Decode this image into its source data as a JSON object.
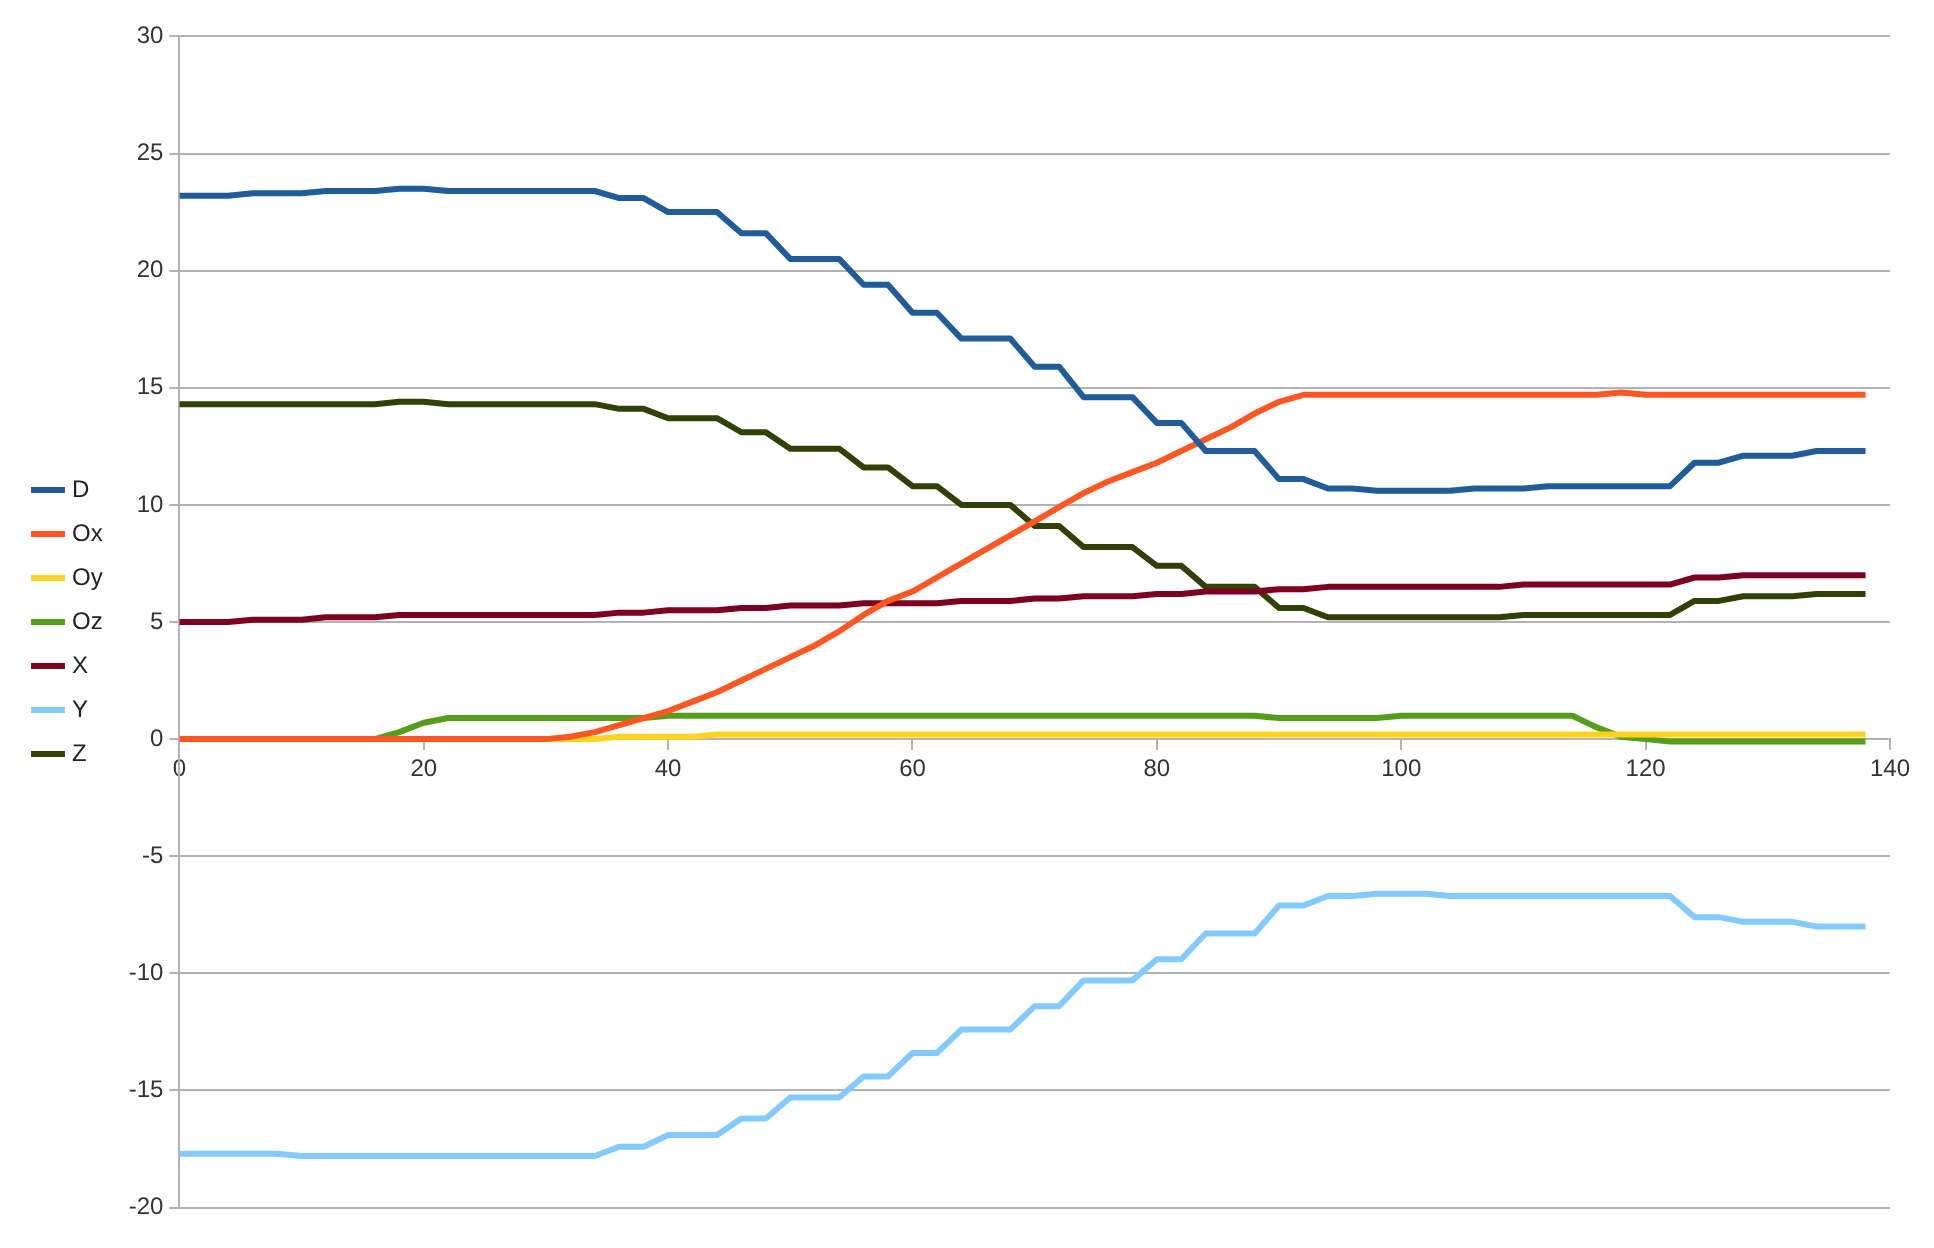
{
  "chart_data": {
    "type": "line",
    "xlim": [
      0,
      140
    ],
    "xticks": [
      0,
      20,
      40,
      60,
      80,
      100,
      120,
      140
    ],
    "ylim": [
      -20,
      30
    ],
    "yticks": [
      -20,
      -15,
      -10,
      -5,
      0,
      5,
      10,
      15,
      20,
      25,
      30
    ],
    "grid": "y",
    "legend": "left",
    "marker": "none",
    "x": [
      0,
      2,
      4,
      6,
      8,
      10,
      12,
      14,
      16,
      18,
      20,
      22,
      24,
      26,
      28,
      30,
      32,
      34,
      36,
      38,
      40,
      42,
      44,
      46,
      48,
      50,
      52,
      54,
      56,
      58,
      60,
      62,
      64,
      66,
      68,
      70,
      72,
      74,
      76,
      78,
      80,
      82,
      84,
      86,
      88,
      90,
      92,
      94,
      96,
      98,
      100,
      102,
      104,
      106,
      108,
      110,
      112,
      114,
      116,
      118,
      120,
      122,
      124,
      126,
      128,
      130,
      132,
      134,
      136,
      138
    ],
    "series": [
      {
        "name": "D",
        "color": "#1f5c99",
        "values": [
          23.2,
          23.2,
          23.2,
          23.3,
          23.3,
          23.3,
          23.4,
          23.4,
          23.4,
          23.5,
          23.5,
          23.4,
          23.4,
          23.4,
          23.4,
          23.4,
          23.4,
          23.4,
          23.1,
          23.1,
          22.5,
          22.5,
          22.5,
          21.6,
          21.6,
          20.5,
          20.5,
          20.5,
          19.4,
          19.4,
          18.2,
          18.2,
          17.1,
          17.1,
          17.1,
          15.9,
          15.9,
          14.6,
          14.6,
          14.6,
          13.5,
          13.5,
          12.3,
          12.3,
          12.3,
          11.1,
          11.1,
          10.7,
          10.7,
          10.6,
          10.6,
          10.6,
          10.6,
          10.7,
          10.7,
          10.7,
          10.8,
          10.8,
          10.8,
          10.8,
          10.8,
          10.8,
          11.8,
          11.8,
          12.1,
          12.1,
          12.1,
          12.3,
          12.3,
          12.3
        ]
      },
      {
        "name": "Ox",
        "color": "#ff5722",
        "values": [
          0,
          0,
          0,
          0,
          0,
          0,
          0,
          0,
          0,
          0,
          0,
          0,
          0,
          0,
          0,
          0,
          0.1,
          0.3,
          0.6,
          0.9,
          1.2,
          1.6,
          2.0,
          2.5,
          3.0,
          3.5,
          4.0,
          4.6,
          5.3,
          5.9,
          6.3,
          6.9,
          7.5,
          8.1,
          8.7,
          9.3,
          9.9,
          10.5,
          11.0,
          11.4,
          11.8,
          12.3,
          12.8,
          13.3,
          13.9,
          14.4,
          14.7,
          14.7,
          14.7,
          14.7,
          14.7,
          14.7,
          14.7,
          14.7,
          14.7,
          14.7,
          14.7,
          14.7,
          14.7,
          14.8,
          14.7,
          14.7,
          14.7,
          14.7,
          14.7,
          14.7,
          14.7,
          14.7,
          14.7,
          14.7
        ]
      },
      {
        "name": "Oy",
        "color": "#ffd320",
        "values": [
          null,
          null,
          null,
          null,
          null,
          null,
          null,
          null,
          null,
          null,
          null,
          null,
          null,
          null,
          0,
          0,
          0,
          0,
          0.1,
          0.1,
          0.1,
          0.1,
          0.2,
          0.2,
          0.2,
          0.2,
          0.2,
          0.2,
          0.2,
          0.2,
          0.2,
          0.2,
          0.2,
          0.2,
          0.2,
          0.2,
          0.2,
          0.2,
          0.2,
          0.2,
          0.2,
          0.2,
          0.2,
          0.2,
          0.2,
          0.2,
          0.2,
          0.2,
          0.2,
          0.2,
          0.2,
          0.2,
          0.2,
          0.2,
          0.2,
          0.2,
          0.2,
          0.2,
          0.2,
          0.2,
          0.2,
          0.2,
          0.2,
          0.2,
          0.2,
          0.2,
          0.2,
          0.2,
          0.2,
          0.2
        ]
      },
      {
        "name": "Oz",
        "color": "#579d1c",
        "values": [
          null,
          null,
          null,
          null,
          null,
          null,
          null,
          0,
          0,
          0.3,
          0.7,
          0.9,
          0.9,
          0.9,
          0.9,
          0.9,
          0.9,
          0.9,
          0.9,
          0.9,
          1.0,
          1.0,
          1.0,
          1.0,
          1.0,
          1.0,
          1.0,
          1.0,
          1.0,
          1.0,
          1.0,
          1.0,
          1.0,
          1.0,
          1.0,
          1.0,
          1.0,
          1.0,
          1.0,
          1.0,
          1.0,
          1.0,
          1.0,
          1.0,
          1.0,
          0.9,
          0.9,
          0.9,
          0.9,
          0.9,
          1.0,
          1.0,
          1.0,
          1.0,
          1.0,
          1.0,
          1.0,
          1.0,
          0.5,
          0.1,
          0,
          -0.1,
          -0.1,
          -0.1,
          -0.1,
          -0.1,
          -0.1,
          -0.1,
          -0.1,
          -0.1
        ]
      },
      {
        "name": "X",
        "color": "#7e0021",
        "values": [
          5.0,
          5.0,
          5.0,
          5.1,
          5.1,
          5.1,
          5.2,
          5.2,
          5.2,
          5.3,
          5.3,
          5.3,
          5.3,
          5.3,
          5.3,
          5.3,
          5.3,
          5.3,
          5.4,
          5.4,
          5.5,
          5.5,
          5.5,
          5.6,
          5.6,
          5.7,
          5.7,
          5.7,
          5.8,
          5.8,
          5.8,
          5.8,
          5.9,
          5.9,
          5.9,
          6.0,
          6.0,
          6.1,
          6.1,
          6.1,
          6.2,
          6.2,
          6.3,
          6.3,
          6.3,
          6.4,
          6.4,
          6.5,
          6.5,
          6.5,
          6.5,
          6.5,
          6.5,
          6.5,
          6.5,
          6.6,
          6.6,
          6.6,
          6.6,
          6.6,
          6.6,
          6.6,
          6.9,
          6.9,
          7.0,
          7.0,
          7.0,
          7.0,
          7.0,
          7.0
        ]
      },
      {
        "name": "Y",
        "color": "#83caff",
        "values": [
          -17.7,
          -17.7,
          -17.7,
          -17.7,
          -17.7,
          -17.8,
          -17.8,
          -17.8,
          -17.8,
          -17.8,
          -17.8,
          -17.8,
          -17.8,
          -17.8,
          -17.8,
          -17.8,
          -17.8,
          -17.8,
          -17.4,
          -17.4,
          -16.9,
          -16.9,
          -16.9,
          -16.2,
          -16.2,
          -15.3,
          -15.3,
          -15.3,
          -14.4,
          -14.4,
          -13.4,
          -13.4,
          -12.4,
          -12.4,
          -12.4,
          -11.4,
          -11.4,
          -10.3,
          -10.3,
          -10.3,
          -9.4,
          -9.4,
          -8.3,
          -8.3,
          -8.3,
          -7.1,
          -7.1,
          -6.7,
          -6.7,
          -6.6,
          -6.6,
          -6.6,
          -6.7,
          -6.7,
          -6.7,
          -6.7,
          -6.7,
          -6.7,
          -6.7,
          -6.7,
          -6.7,
          -6.7,
          -7.6,
          -7.6,
          -7.8,
          -7.8,
          -7.8,
          -8.0,
          -8.0,
          -8.0
        ]
      },
      {
        "name": "Z",
        "color": "#314004",
        "values": [
          14.3,
          14.3,
          14.3,
          14.3,
          14.3,
          14.3,
          14.3,
          14.3,
          14.3,
          14.4,
          14.4,
          14.3,
          14.3,
          14.3,
          14.3,
          14.3,
          14.3,
          14.3,
          14.1,
          14.1,
          13.7,
          13.7,
          13.7,
          13.1,
          13.1,
          12.4,
          12.4,
          12.4,
          11.6,
          11.6,
          10.8,
          10.8,
          10.0,
          10.0,
          10.0,
          9.1,
          9.1,
          8.2,
          8.2,
          8.2,
          7.4,
          7.4,
          6.5,
          6.5,
          6.5,
          5.6,
          5.6,
          5.2,
          5.2,
          5.2,
          5.2,
          5.2,
          5.2,
          5.2,
          5.2,
          5.3,
          5.3,
          5.3,
          5.3,
          5.3,
          5.3,
          5.3,
          5.9,
          5.9,
          6.1,
          6.1,
          6.1,
          6.2,
          6.2,
          6.2
        ]
      }
    ]
  }
}
